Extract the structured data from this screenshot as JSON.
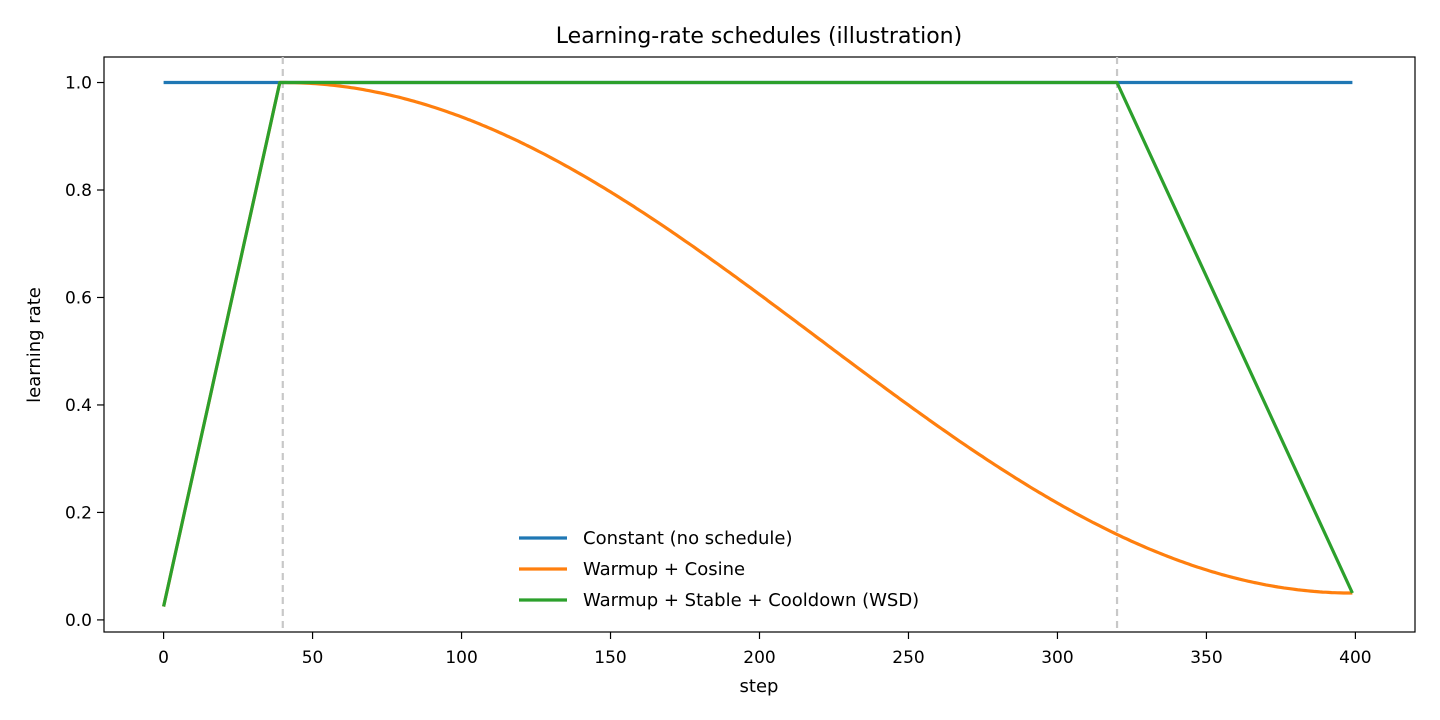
{
  "chart_data": {
    "type": "line",
    "title": "Learning-rate schedules (illustration)",
    "xlabel": "step",
    "ylabel": "learning rate",
    "xlim": [
      -20,
      420
    ],
    "ylim": [
      -0.0225,
      1.0475
    ],
    "xticks": [
      0,
      50,
      100,
      150,
      200,
      250,
      300,
      350,
      400
    ],
    "xtick_labels": [
      "0",
      "50",
      "100",
      "150",
      "200",
      "250",
      "300",
      "350",
      "400"
    ],
    "yticks": [
      0.0,
      0.2,
      0.4,
      0.6,
      0.8,
      1.0
    ],
    "ytick_labels": [
      "0.0",
      "0.2",
      "0.4",
      "0.6",
      "0.8",
      "1.0"
    ],
    "vlines": [
      40,
      320
    ],
    "legend_position": "bottom-center",
    "grid": false,
    "series": [
      {
        "name": "Constant (no schedule)",
        "color": "#1f77b4",
        "x": [
          0,
          399
        ],
        "y": [
          1.0,
          1.0
        ]
      },
      {
        "name": "Warmup + Cosine",
        "color": "#ff7f0e",
        "x": [
          0,
          39,
          40,
          60,
          80,
          100,
          120,
          140,
          160,
          180,
          200,
          220,
          240,
          260,
          280,
          300,
          320,
          340,
          360,
          380,
          399
        ],
        "y": [
          0.025,
          1.0,
          1.0,
          0.992,
          0.97,
          0.934,
          0.886,
          0.828,
          0.761,
          0.688,
          0.612,
          0.535,
          0.459,
          0.387,
          0.32,
          0.259,
          0.206,
          0.162,
          0.127,
          0.101,
          0.05
        ]
      },
      {
        "name": "Warmup + Stable + Cooldown (WSD)",
        "color": "#2ca02c",
        "x": [
          0,
          39,
          40,
          320,
          399
        ],
        "y": [
          0.025,
          1.0,
          1.0,
          1.0,
          0.05
        ]
      }
    ]
  }
}
